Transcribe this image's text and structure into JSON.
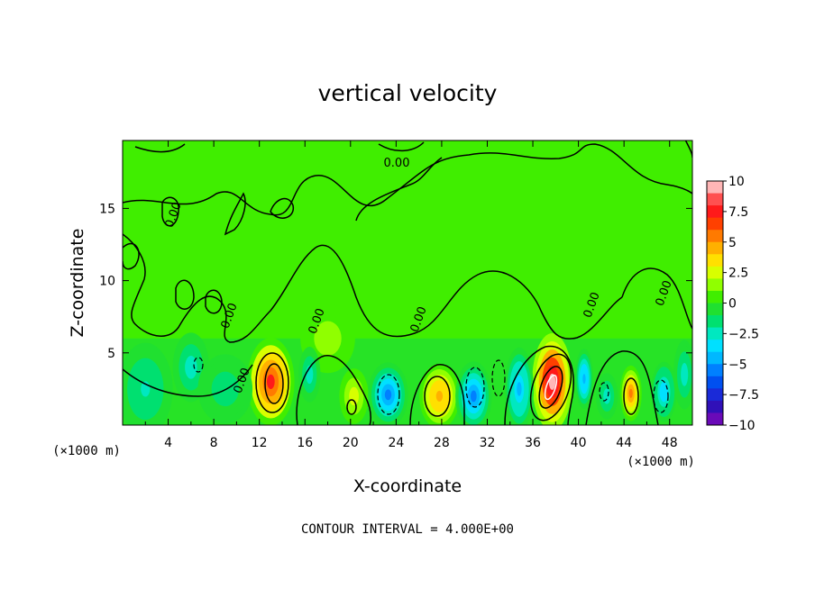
{
  "chart_data": {
    "type": "heatmap",
    "title": "vertical velocity",
    "xlabel": "X-coordinate",
    "ylabel": "Z-coordinate",
    "x_unit_label": "(×1000 m)",
    "xlim": [
      0,
      50
    ],
    "ylim": [
      0,
      19.7
    ],
    "xticks": [
      "4",
      "8",
      "12",
      "16",
      "20",
      "24",
      "28",
      "32",
      "36",
      "40",
      "44",
      "48"
    ],
    "yticks": [
      "5",
      "10",
      "15"
    ],
    "colorbar": {
      "range": [
        -10,
        10
      ],
      "labels": [
        "10",
        "7.5",
        "5",
        "2.5",
        "0",
        "−2.5",
        "−5",
        "−7.5",
        "−10"
      ],
      "colors": [
        "#ffb6b6",
        "#ff5050",
        "#ff1a1a",
        "#ff4000",
        "#ff7a00",
        "#ffb000",
        "#ffe000",
        "#d8ff00",
        "#90ff00",
        "#40ee00",
        "#20e030",
        "#00e070",
        "#00e8c0",
        "#00e0ff",
        "#00b8ff",
        "#0080ff",
        "#0050f0",
        "#1a2ad8",
        "#3010b8",
        "#6a0ab8"
      ]
    },
    "background_value": 0,
    "features": [
      {
        "kind": "updraft",
        "x": 13.0,
        "z": 3.0,
        "peak": 8.5,
        "sx": 1.3,
        "sz": 1.9
      },
      {
        "kind": "updraft",
        "x": 37.7,
        "z": 3.0,
        "peak": 11.0,
        "sx": 1.1,
        "sz": 2.1
      },
      {
        "kind": "updraft",
        "x": 27.8,
        "z": 2.0,
        "peak": 5.5,
        "sx": 1.1,
        "sz": 1.4
      },
      {
        "kind": "updraft",
        "x": 44.6,
        "z": 2.2,
        "peak": 6.5,
        "sx": 0.6,
        "sz": 1.2
      },
      {
        "kind": "updraft",
        "x": 20.3,
        "z": 2.0,
        "peak": 3.0,
        "sx": 0.8,
        "sz": 1.2
      },
      {
        "kind": "updraft",
        "x": 18.0,
        "z": 6.0,
        "peak": 2.0,
        "sx": 1.5,
        "sz": 1.5
      },
      {
        "kind": "downdraft",
        "x": 23.3,
        "z": 2.1,
        "peak": -7.0,
        "sx": 1.1,
        "sz": 1.4
      },
      {
        "kind": "downdraft",
        "x": 30.8,
        "z": 2.0,
        "peak": -6.0,
        "sx": 1.0,
        "sz": 1.5
      },
      {
        "kind": "downdraft",
        "x": 34.8,
        "z": 2.5,
        "peak": -5.0,
        "sx": 0.8,
        "sz": 1.8
      },
      {
        "kind": "downdraft",
        "x": 40.5,
        "z": 3.2,
        "peak": -5.5,
        "sx": 0.5,
        "sz": 1.3
      },
      {
        "kind": "downdraft",
        "x": 47.5,
        "z": 2.3,
        "peak": -4.5,
        "sx": 0.7,
        "sz": 1.3
      },
      {
        "kind": "downdraft",
        "x": 42.5,
        "z": 2.0,
        "peak": -3.5,
        "sx": 0.6,
        "sz": 1.0
      },
      {
        "kind": "downdraft",
        "x": 16.4,
        "z": 3.5,
        "peak": -3.0,
        "sx": 0.6,
        "sz": 1.2
      },
      {
        "kind": "downdraft",
        "x": 6.0,
        "z": 4.0,
        "peak": -3.0,
        "sx": 1.0,
        "sz": 1.5
      },
      {
        "kind": "downdraft",
        "x": 9.0,
        "z": 2.5,
        "peak": -2.0,
        "sx": 1.5,
        "sz": 1.5
      },
      {
        "kind": "downdraft",
        "x": 2.0,
        "z": 2.5,
        "peak": -2.5,
        "sx": 1.5,
        "sz": 2.0
      },
      {
        "kind": "downdraft",
        "x": 49.3,
        "z": 3.5,
        "peak": -3.0,
        "sx": 0.6,
        "sz": 1.5
      }
    ],
    "contour_labels": [
      "0.00",
      "0.00",
      "0.00",
      "0.00",
      "0.00",
      "0.00",
      "0.00",
      "0.00"
    ],
    "annotation": "CONTOUR INTERVAL = 4.000E+00"
  }
}
